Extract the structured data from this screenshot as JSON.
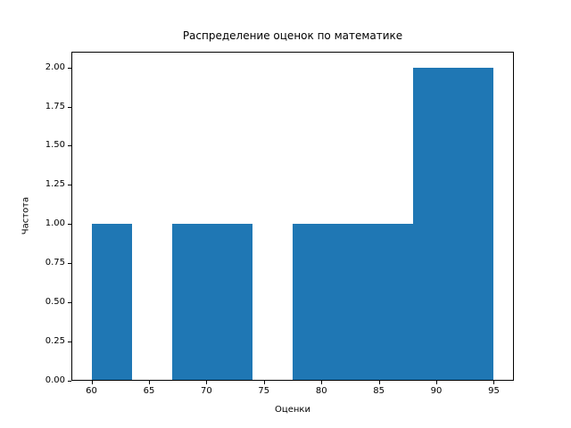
{
  "figure": {
    "kind": "matplotlib-histogram-screenshot"
  },
  "chart_data": {
    "type": "bar",
    "subtype": "histogram",
    "title": "Распределение оценок по математике",
    "xlabel": "Оценки",
    "ylabel": "Частота",
    "bin_edges": [
      60,
      63.5,
      67,
      70.5,
      74,
      77.5,
      81,
      84.5,
      88,
      91.5,
      95
    ],
    "counts": [
      1,
      0,
      1,
      1,
      0,
      1,
      1,
      1,
      2,
      2
    ],
    "xticks": [
      60,
      65,
      70,
      75,
      80,
      85,
      90,
      95
    ],
    "ytick_values": [
      0,
      0.25,
      0.5,
      0.75,
      1.0,
      1.25,
      1.5,
      1.75,
      2.0
    ],
    "ytick_labels": [
      "0.00",
      "0.25",
      "0.50",
      "0.75",
      "1.00",
      "1.25",
      "1.50",
      "1.75",
      "2.00"
    ],
    "xlim": [
      58.25,
      96.75
    ],
    "ylim": [
      0,
      2.1
    ],
    "bar_color": "#1f77b4",
    "axis_color": "#000000",
    "background_color": "#ffffff",
    "grid": false,
    "legend": null
  }
}
